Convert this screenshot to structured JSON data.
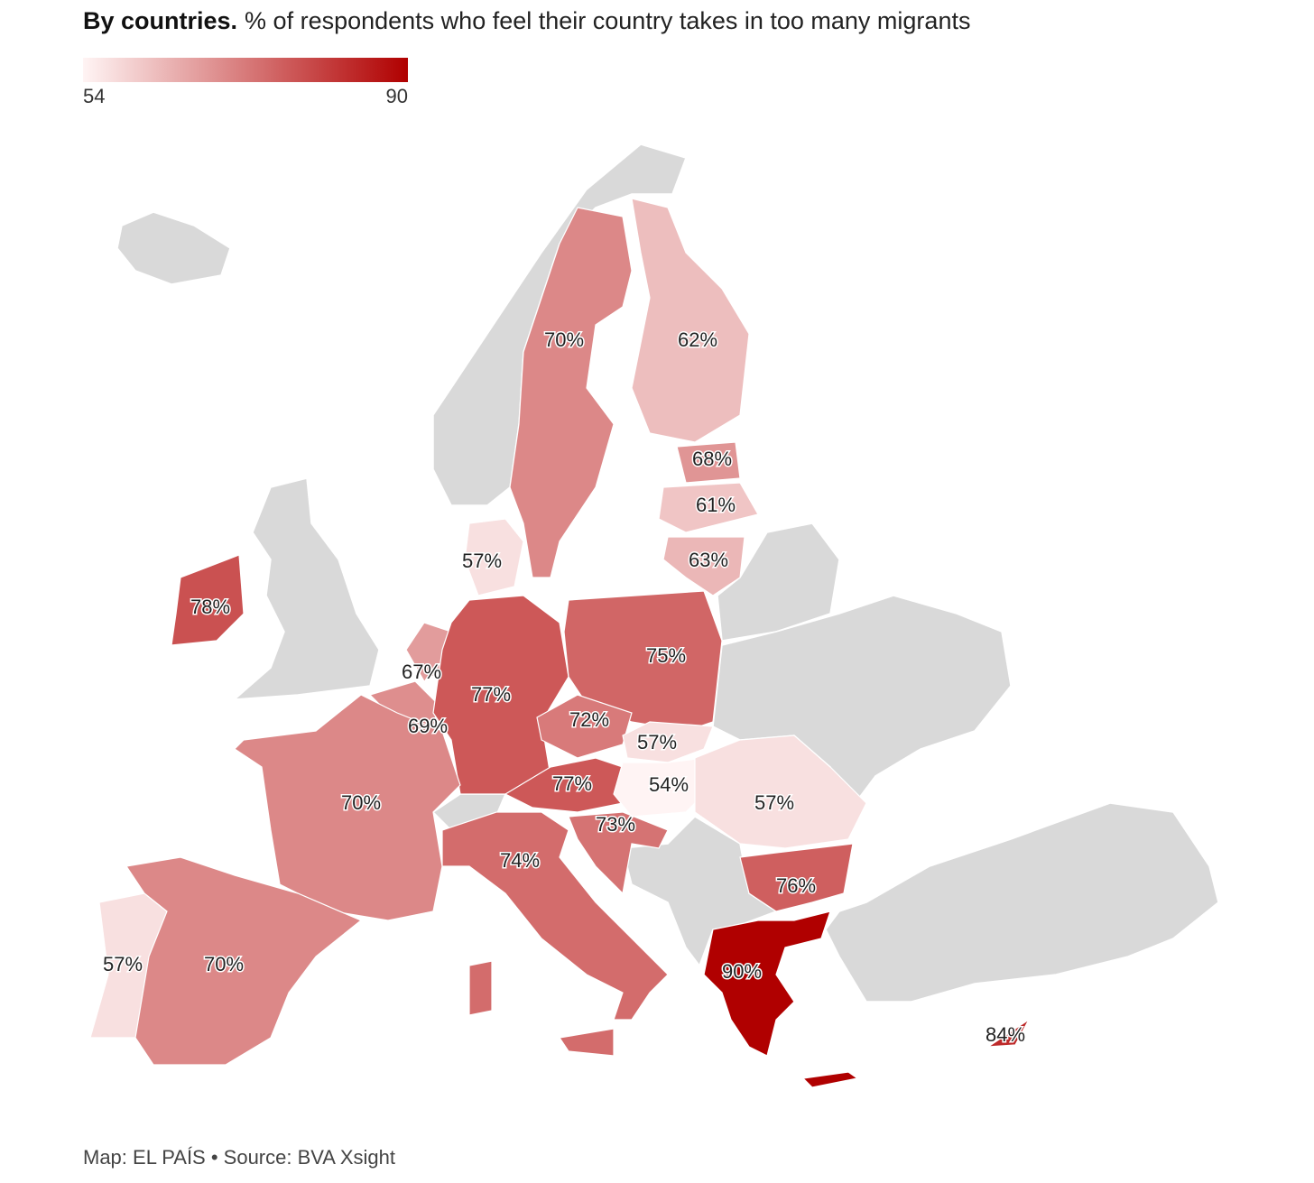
{
  "title_lead": "By countries.",
  "title": "% of respondents who feel their country takes in too many migrants",
  "source": "Map: EL PAÍS • Source: BVA Xsight",
  "chart_data": {
    "type": "choropleth",
    "scale": [
      54,
      90
    ],
    "scale_colors": [
      "#fff4f4",
      "#b00000"
    ],
    "values": [
      70,
      62,
      68,
      61,
      63,
      57,
      78,
      67,
      69,
      77,
      75,
      72,
      57,
      77,
      54,
      57,
      70,
      73,
      74,
      76,
      90,
      57,
      70,
      84
    ],
    "value_labels": [
      "70%",
      "62%",
      "68%",
      "61%",
      "63%",
      "57%",
      "78%",
      "67%",
      "69%",
      "77%",
      "75%",
      "72%",
      "57%",
      "77%",
      "54%",
      "57%",
      "70%",
      "73%",
      "74%",
      "76%",
      "90%",
      "57%",
      "70%",
      "84%"
    ]
  }
}
